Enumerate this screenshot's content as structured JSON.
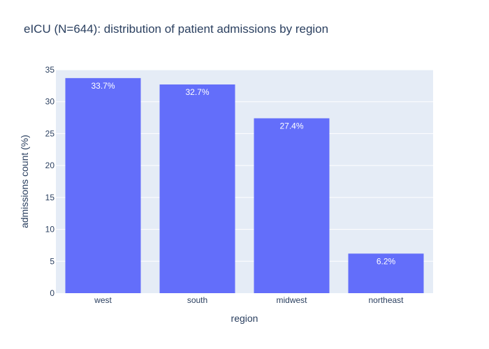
{
  "title": "eICU (N=644): distribution of patient admissions by region",
  "chart_data": {
    "type": "bar",
    "title": "eICU (N=644): distribution of patient admissions by region",
    "xlabel": "region",
    "ylabel": "admissions count (%)",
    "categories": [
      "west",
      "south",
      "midwest",
      "northeast"
    ],
    "values": [
      33.7,
      32.7,
      27.4,
      6.2
    ],
    "data_labels": [
      "33.7%",
      "32.7%",
      "27.4%",
      "6.2%"
    ],
    "ylim": [
      0,
      35
    ],
    "yticks": [
      0,
      5,
      10,
      15,
      20,
      25,
      30,
      35
    ],
    "grid": true,
    "bar_color": "#636efa",
    "plot_bg": "#e5ecf6"
  }
}
